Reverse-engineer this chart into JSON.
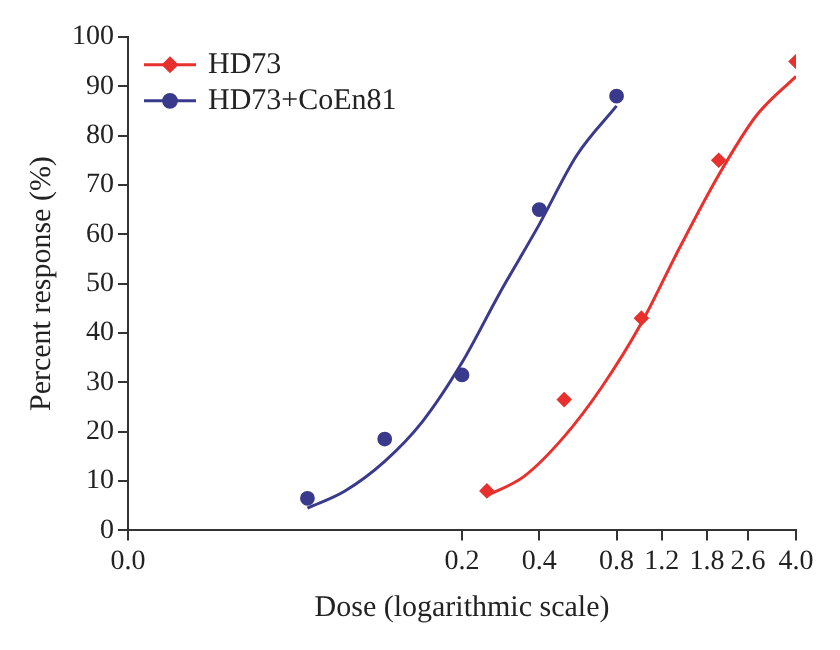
{
  "chart_data": {
    "type": "scatter",
    "xlabel": "Dose (logarithmic scale)",
    "ylabel": "Percent response (%)",
    "log": "x",
    "xlim": [
      0.01,
      4.0
    ],
    "xticks": [
      {
        "value": 0.01,
        "label": "0.0"
      },
      0.2,
      0.4,
      0.8,
      1.2,
      1.8,
      2.6,
      {
        "value": 4.0,
        "label": "4.0"
      }
    ],
    "ylim": [
      0,
      100
    ],
    "yticks": [
      0,
      10,
      20,
      30,
      40,
      50,
      60,
      70,
      80,
      90,
      100
    ],
    "grid": false,
    "legend": "top left",
    "series": [
      {
        "name": "HD73",
        "type": "scatter",
        "marker": "diamond",
        "color": "#e8302c",
        "x": [
          0.25,
          0.5,
          1.0,
          2.0,
          4.0
        ],
        "values": [
          8,
          26.5,
          43,
          75,
          95
        ]
      },
      {
        "name": "HD73+CoEn81",
        "type": "scatter",
        "marker": "circle",
        "color": "#3a3a8c",
        "x": [
          0.05,
          0.1,
          0.2,
          0.4,
          0.8
        ],
        "values": [
          6.5,
          18.5,
          31.5,
          65,
          88
        ]
      },
      {
        "type": "line",
        "marker": "none",
        "color": "#e8302c",
        "x": [
          0.25,
          0.35,
          0.5,
          0.7,
          1.0,
          1.4,
          2.0,
          2.8,
          4.0
        ],
        "values": [
          7,
          11,
          19,
          29,
          42,
          57,
          72,
          84,
          92
        ]
      },
      {
        "type": "line",
        "marker": "none",
        "color": "#3a3a8c",
        "x": [
          0.05,
          0.07,
          0.1,
          0.14,
          0.2,
          0.28,
          0.4,
          0.56,
          0.8
        ],
        "values": [
          4.5,
          8,
          14,
          22,
          34,
          48,
          62,
          76,
          86
        ]
      }
    ]
  }
}
